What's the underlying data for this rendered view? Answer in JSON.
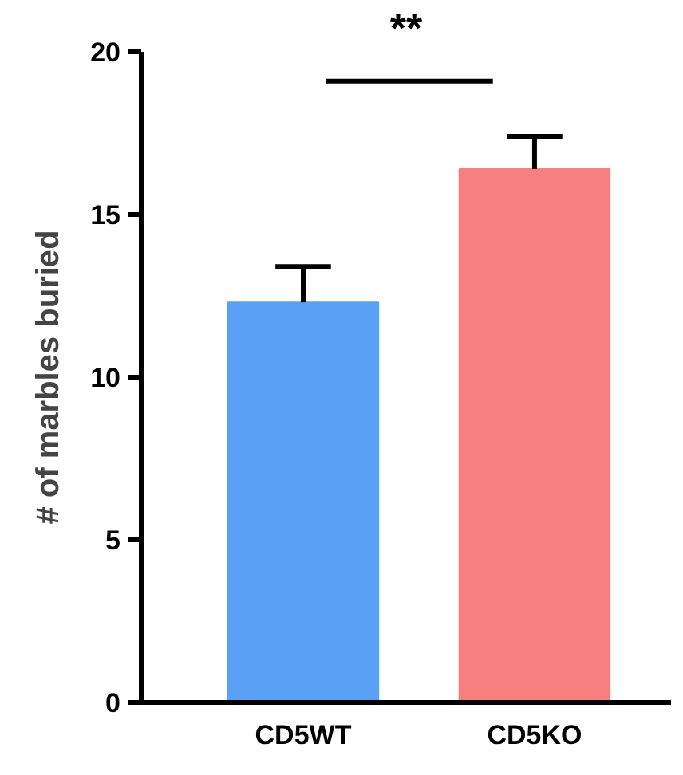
{
  "chart_data": {
    "type": "bar",
    "ylabel": "# of marbles buried",
    "categories": [
      "CD5WT",
      "CD5KO"
    ],
    "values": [
      12.3,
      16.4
    ],
    "colors": [
      "#5aa0f5",
      "#f87f7f"
    ],
    "errors": [
      [
        12.3,
        13.4
      ],
      [
        16.4,
        17.4
      ]
    ],
    "ylim": [
      0,
      20
    ],
    "yticks": [
      0,
      5,
      10,
      15,
      20
    ],
    "grid": false,
    "annotations": [
      "**"
    ]
  }
}
